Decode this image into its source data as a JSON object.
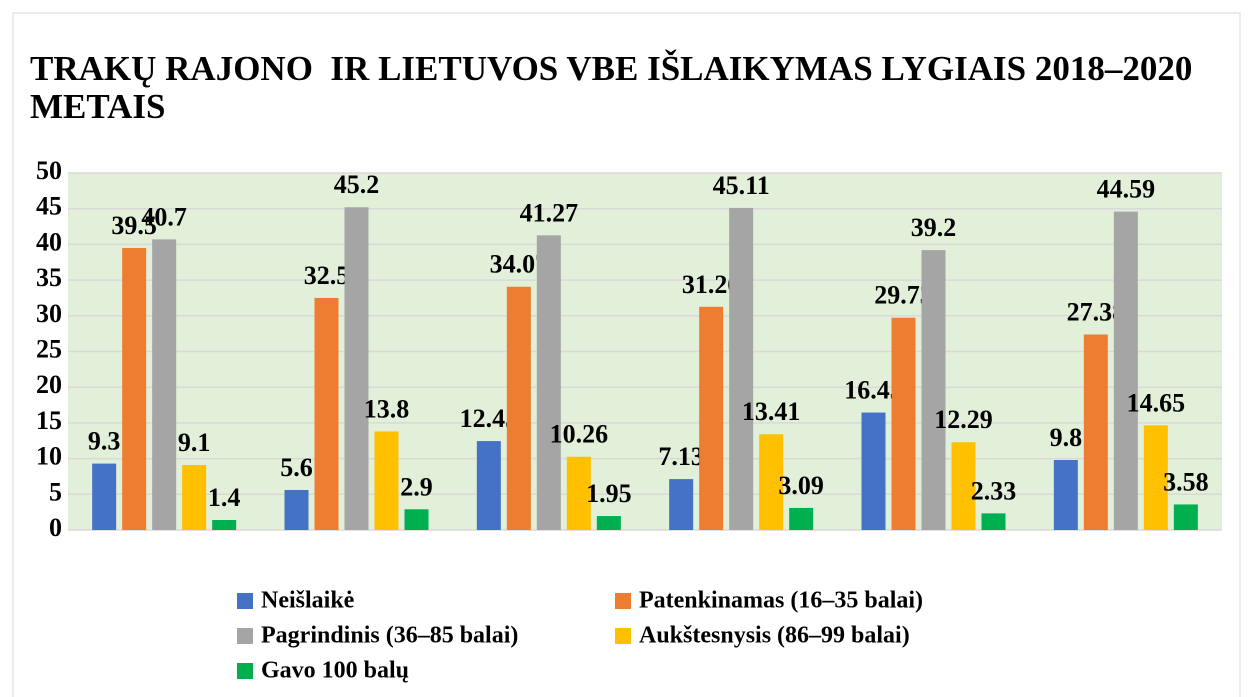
{
  "chart_data": {
    "type": "bar",
    "title": "TRAKŲ RAJONO  IR LIETUVOS VBE IŠLAIKYMAS LYGIAIS 2018–2020 METAIS",
    "categories": [
      null,
      null,
      null,
      null,
      null,
      null
    ],
    "series": [
      {
        "name": "Neišlaikė",
        "color": "#4472c4",
        "values": [
          9.3,
          5.6,
          12.45,
          7.13,
          16.45,
          9.8
        ]
      },
      {
        "name": "Patenkinamas (16–35 balai)",
        "color": "#ed7d31",
        "values": [
          39.5,
          32.5,
          34.07,
          31.26,
          29.73,
          27.38
        ]
      },
      {
        "name": "Pagrindinis (36–85 balai)",
        "color": "#a5a5a5",
        "values": [
          40.7,
          45.2,
          41.27,
          45.11,
          39.2,
          44.59
        ]
      },
      {
        "name": "Aukštesnysis (86–99 balai)",
        "color": "#ffc000",
        "values": [
          9.1,
          13.8,
          10.26,
          13.41,
          12.29,
          14.65
        ]
      },
      {
        "name": "Gavo 100 balų",
        "color": "#00b050",
        "values": [
          1.4,
          2.9,
          1.95,
          3.09,
          2.33,
          3.58
        ]
      }
    ],
    "ylim": [
      0,
      50
    ],
    "yticks": [
      0,
      5,
      10,
      15,
      20,
      25,
      30,
      35,
      40,
      45,
      50
    ],
    "grid": true
  }
}
